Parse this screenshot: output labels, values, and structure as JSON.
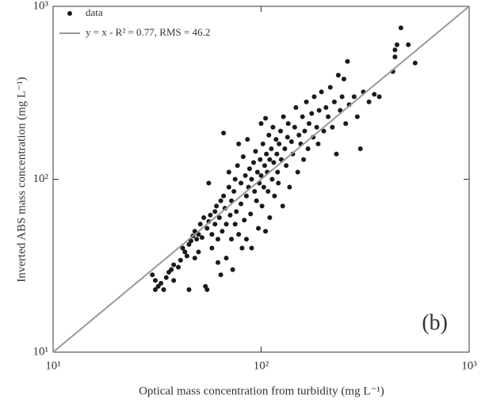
{
  "chart_data": {
    "type": "scatter",
    "xlabel": "Optical mass concentration from turbidity (mg L⁻¹)",
    "ylabel": "Inverted ABS mass concentration (mg L⁻¹)",
    "annotation": "(b)",
    "xscale": "log",
    "yscale": "log",
    "xlim": [
      10,
      1000
    ],
    "ylim": [
      10,
      1000
    ],
    "xticks": [
      {
        "value": 10,
        "label": "10¹"
      },
      {
        "value": 100,
        "label": "10²"
      },
      {
        "value": 1000,
        "label": "10³"
      }
    ],
    "yticks": [
      {
        "value": 10,
        "label": "10¹"
      },
      {
        "value": 100,
        "label": "10²"
      },
      {
        "value": 1000,
        "label": "10³"
      }
    ],
    "legend": "upper left",
    "series": [
      {
        "name": "data",
        "color": "#1a1a1a",
        "kind": "points",
        "x": [
          30,
          31,
          32,
          33,
          34,
          31,
          35,
          36,
          37,
          38,
          38,
          40,
          41,
          42,
          43,
          44,
          45,
          45,
          46,
          47,
          48,
          48,
          49,
          50,
          50,
          51,
          52,
          53,
          54,
          55,
          55,
          56,
          56,
          57,
          58,
          58,
          60,
          60,
          61,
          62,
          62,
          63,
          64,
          64,
          65,
          66,
          66,
          67,
          68,
          68,
          70,
          70,
          71,
          72,
          72,
          73,
          74,
          75,
          75,
          76,
          77,
          78,
          78,
          80,
          80,
          81,
          82,
          83,
          84,
          85,
          85,
          86,
          87,
          88,
          89,
          90,
          90,
          92,
          93,
          94,
          95,
          96,
          97,
          98,
          99,
          100,
          100,
          101,
          102,
          103,
          104,
          105,
          105,
          106,
          107,
          108,
          109,
          110,
          110,
          112,
          113,
          114,
          115,
          116,
          118,
          119,
          120,
          121,
          122,
          124,
          125,
          127,
          128,
          130,
          132,
          134,
          135,
          137,
          140,
          142,
          145,
          147,
          150,
          152,
          155,
          158,
          160,
          162,
          165,
          168,
          170,
          175,
          178,
          180,
          185,
          188,
          190,
          195,
          200,
          205,
          210,
          215,
          220,
          225,
          230,
          235,
          240,
          245,
          250,
          255,
          260,
          265,
          280,
          290,
          300,
          310,
          350,
          370,
          430,
          440,
          450,
          470,
          510,
          550,
          440,
          330
        ],
        "values": [
          28,
          23,
          24,
          25,
          23,
          26,
          27,
          29,
          30,
          32,
          26,
          31,
          34,
          40,
          38,
          36,
          23,
          42,
          44,
          47,
          35,
          50,
          45,
          48,
          38,
          55,
          46,
          60,
          24,
          23,
          52,
          57,
          95,
          62,
          40,
          48,
          55,
          65,
          70,
          33,
          45,
          60,
          75,
          28,
          50,
          80,
          185,
          68,
          35,
          55,
          90,
          110,
          62,
          45,
          75,
          30,
          85,
          100,
          55,
          65,
          120,
          48,
          160,
          95,
          72,
          40,
          135,
          58,
          105,
          80,
          45,
          170,
          90,
          115,
          63,
          100,
          40,
          125,
          85,
          145,
          75,
          110,
          52,
          95,
          130,
          210,
          105,
          70,
          160,
          90,
          120,
          225,
          50,
          140,
          110,
          85,
          180,
          130,
          60,
          150,
          100,
          200,
          125,
          80,
          170,
          140,
          110,
          95,
          160,
          190,
          130,
          70,
          230,
          150,
          120,
          175,
          210,
          90,
          165,
          140,
          200,
          260,
          110,
          180,
          160,
          230,
          130,
          190,
          280,
          150,
          210,
          240,
          175,
          300,
          200,
          160,
          250,
          320,
          190,
          260,
          230,
          340,
          200,
          280,
          140,
          400,
          250,
          300,
          380,
          210,
          480,
          270,
          300,
          230,
          150,
          320,
          310,
          300,
          420,
          510,
          600,
          750,
          600,
          470,
          560,
          280
        ]
      },
      {
        "name": "y = x - R² = 0.77, RMS = 46.2",
        "color": "#999999",
        "kind": "line",
        "x": [
          10,
          1000
        ],
        "values": [
          10,
          1000
        ]
      }
    ]
  }
}
